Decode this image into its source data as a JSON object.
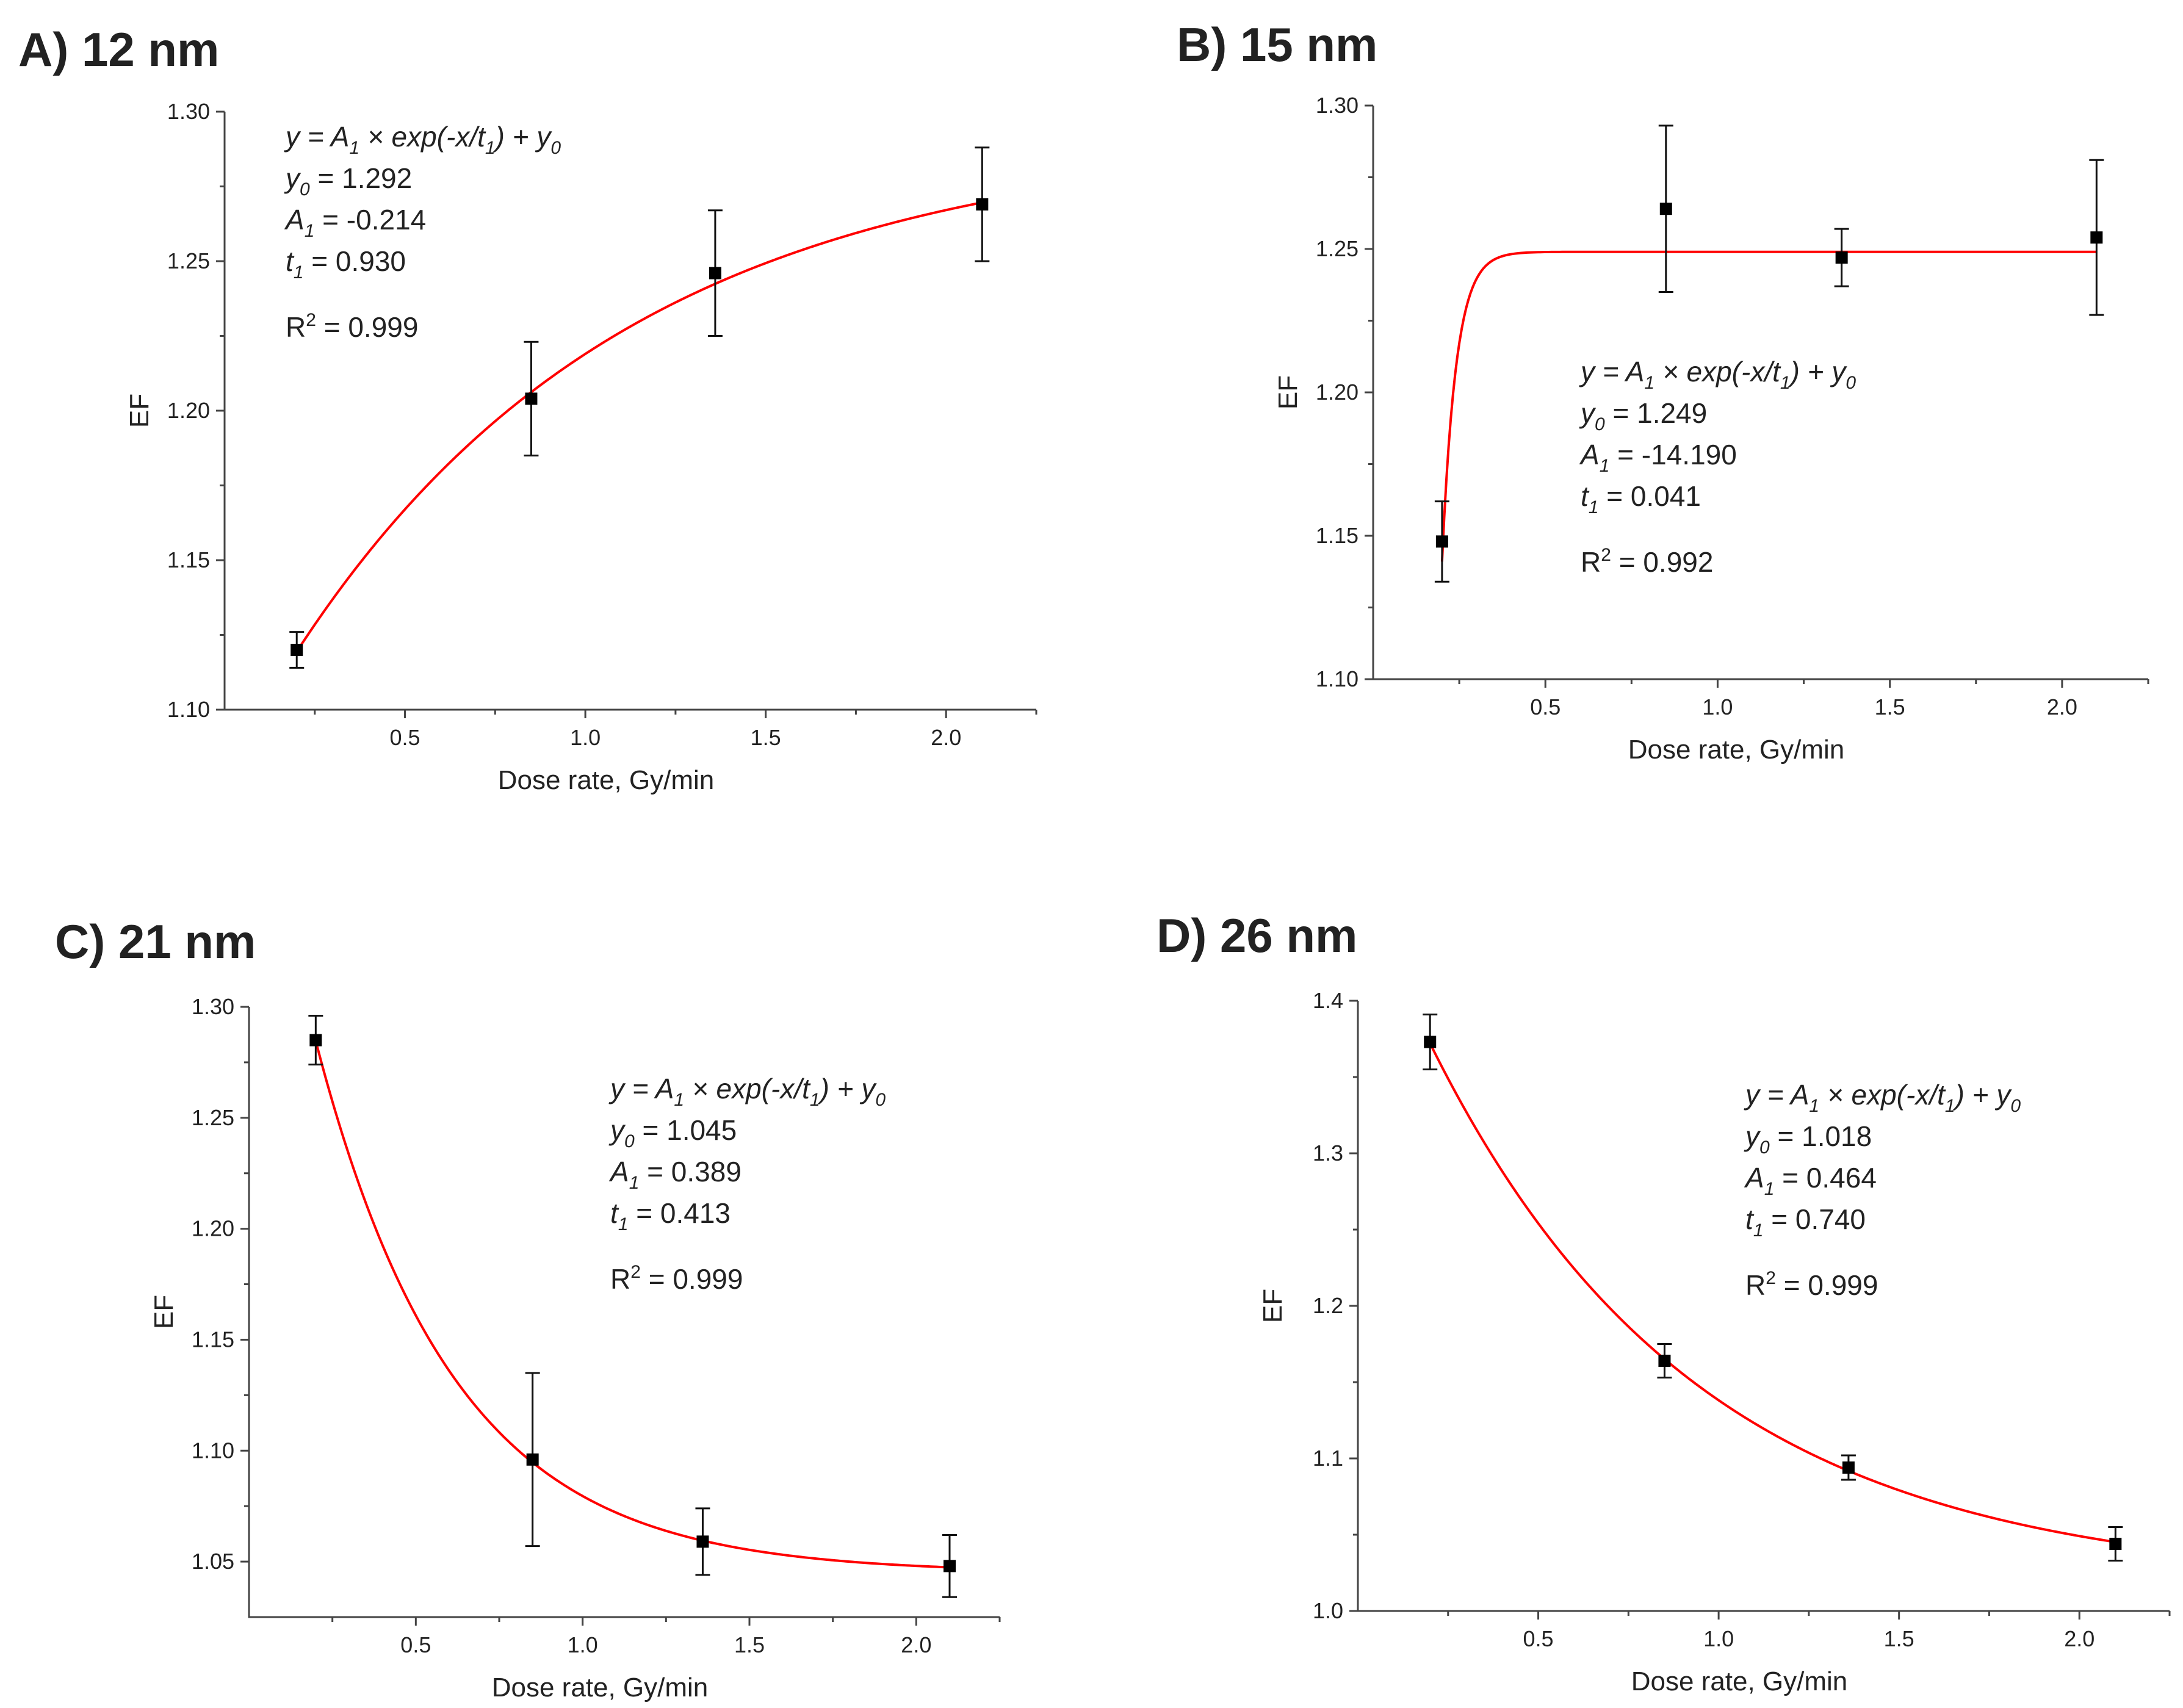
{
  "chart_data": [
    {
      "type": "scatter",
      "title": "A) 12 nm",
      "xlabel": "Dose rate, Gy/min",
      "ylabel": "EF",
      "xlim": [
        0,
        2.25
      ],
      "ylim": [
        1.1,
        1.3
      ],
      "xticks": [
        0.5,
        1.0,
        1.5,
        2.0
      ],
      "xtick_labels": [
        "0.5",
        "1.0",
        "1.5",
        "2.0"
      ],
      "yticks": [
        1.1,
        1.15,
        1.2,
        1.25,
        1.3
      ],
      "ytick_labels": [
        "1.10",
        "1.15",
        "1.20",
        "1.25",
        "1.30"
      ],
      "x": [
        0.2,
        0.85,
        1.36,
        2.1
      ],
      "y": [
        1.12,
        1.204,
        1.246,
        1.269
      ],
      "err": [
        0.006,
        0.019,
        0.021,
        0.019
      ],
      "fit": {
        "y0": 1.292,
        "A1": -0.214,
        "t1": 0.93,
        "x_range": [
          0.2,
          2.1
        ]
      },
      "annotation": {
        "equation": [
          "y = A",
          "1",
          " × exp(-x/t",
          "1",
          ") + y",
          "0"
        ],
        "y0_label": "y",
        "y0_sub": "0",
        "y0_value": " = 1.292",
        "a1_label": "A",
        "a1_sub": "1",
        "a1_value": " = -0.214",
        "t1_label": "t",
        "t1_sub": "1",
        "t1_value": " = 0.930",
        "r2_label": "R",
        "r2_sup": "2",
        "r2_value": " = 0.999"
      }
    },
    {
      "type": "scatter",
      "title": "B) 15 nm",
      "xlabel": "Dose rate, Gy/min",
      "ylabel": "EF",
      "xlim": [
        0,
        2.25
      ],
      "ylim": [
        1.1,
        1.3
      ],
      "xticks": [
        0.5,
        1.0,
        1.5,
        2.0
      ],
      "xtick_labels": [
        "0.5",
        "1.0",
        "1.5",
        "2.0"
      ],
      "yticks": [
        1.1,
        1.15,
        1.2,
        1.25,
        1.3
      ],
      "ytick_labels": [
        "1.10",
        "1.15",
        "1.20",
        "1.25",
        "1.30"
      ],
      "x": [
        0.2,
        0.85,
        1.36,
        2.1
      ],
      "y": [
        1.148,
        1.264,
        1.247,
        1.254
      ],
      "err": [
        0.014,
        0.029,
        0.01,
        0.027
      ],
      "fit": {
        "y0": 1.249,
        "A1": -14.19,
        "t1": 0.041,
        "x_range": [
          0.2,
          2.1
        ]
      },
      "annotation": {
        "equation": [
          "y = A",
          "1",
          " × exp(-x/t",
          "1",
          ") + y",
          "0"
        ],
        "y0_label": "y",
        "y0_sub": "0",
        "y0_value": " = 1.249",
        "a1_label": "A",
        "a1_sub": "1",
        "a1_value": " = -14.190",
        "t1_label": "t",
        "t1_sub": "1",
        "t1_value": " = 0.041",
        "r2_label": "R",
        "r2_sup": "2",
        "r2_value": " = 0.992"
      }
    },
    {
      "type": "scatter",
      "title": "C) 21 nm",
      "xlabel": "Dose rate, Gy/min",
      "ylabel": "EF",
      "xlim": [
        0,
        2.25
      ],
      "ylim": [
        1.025,
        1.3
      ],
      "xticks": [
        0.5,
        1.0,
        1.5,
        2.0
      ],
      "xtick_labels": [
        "0.5",
        "1.0",
        "1.5",
        "2.0"
      ],
      "yticks": [
        1.05,
        1.1,
        1.15,
        1.2,
        1.25,
        1.3
      ],
      "ytick_labels": [
        "1.05",
        "1.10",
        "1.15",
        "1.20",
        "1.25",
        "1.30"
      ],
      "x": [
        0.2,
        0.85,
        1.36,
        2.1
      ],
      "y": [
        1.285,
        1.096,
        1.059,
        1.048
      ],
      "err": [
        0.011,
        0.039,
        0.015,
        0.014
      ],
      "fit": {
        "y0": 1.045,
        "A1": 0.389,
        "t1": 0.413,
        "x_range": [
          0.2,
          2.1
        ]
      },
      "annotation": {
        "equation": [
          "y = A",
          "1",
          " × exp(-x/t",
          "1",
          ") + y",
          "0"
        ],
        "y0_label": "y",
        "y0_sub": "0",
        "y0_value": " = 1.045",
        "a1_label": "A",
        "a1_sub": "1",
        "a1_value": " = 0.389",
        "t1_label": "t",
        "t1_sub": "1",
        "t1_value": " = 0.413",
        "r2_label": "R",
        "r2_sup": "2",
        "r2_value": " = 0.999"
      }
    },
    {
      "type": "scatter",
      "title": "D) 26 nm",
      "xlabel": "Dose rate, Gy/min",
      "ylabel": "EF",
      "xlim": [
        0,
        2.25
      ],
      "ylim": [
        1.0,
        1.4
      ],
      "xticks": [
        0.5,
        1.0,
        1.5,
        2.0
      ],
      "xtick_labels": [
        "0.5",
        "1.0",
        "1.5",
        "2.0"
      ],
      "yticks": [
        1.0,
        1.1,
        1.2,
        1.3,
        1.4
      ],
      "ytick_labels": [
        "1.0",
        "1.1",
        "1.2",
        "1.3",
        "1.4"
      ],
      "x": [
        0.2,
        0.85,
        1.36,
        2.1
      ],
      "y": [
        1.373,
        1.164,
        1.094,
        1.044
      ],
      "err": [
        0.018,
        0.011,
        0.008,
        0.011
      ],
      "fit": {
        "y0": 1.018,
        "A1": 0.464,
        "t1": 0.74,
        "x_range": [
          0.2,
          2.1
        ]
      },
      "annotation": {
        "equation": [
          "y = A",
          "1",
          " × exp(-x/t",
          "1",
          ") + y",
          "0"
        ],
        "y0_label": "y",
        "y0_sub": "0",
        "y0_value": " = 1.018",
        "a1_label": "A",
        "a1_sub": "1",
        "a1_value": " = 0.464",
        "t1_label": "t",
        "t1_sub": "1",
        "t1_value": " = 0.740",
        "r2_label": "R",
        "r2_sup": "2",
        "r2_value": " = 0.999"
      }
    }
  ]
}
